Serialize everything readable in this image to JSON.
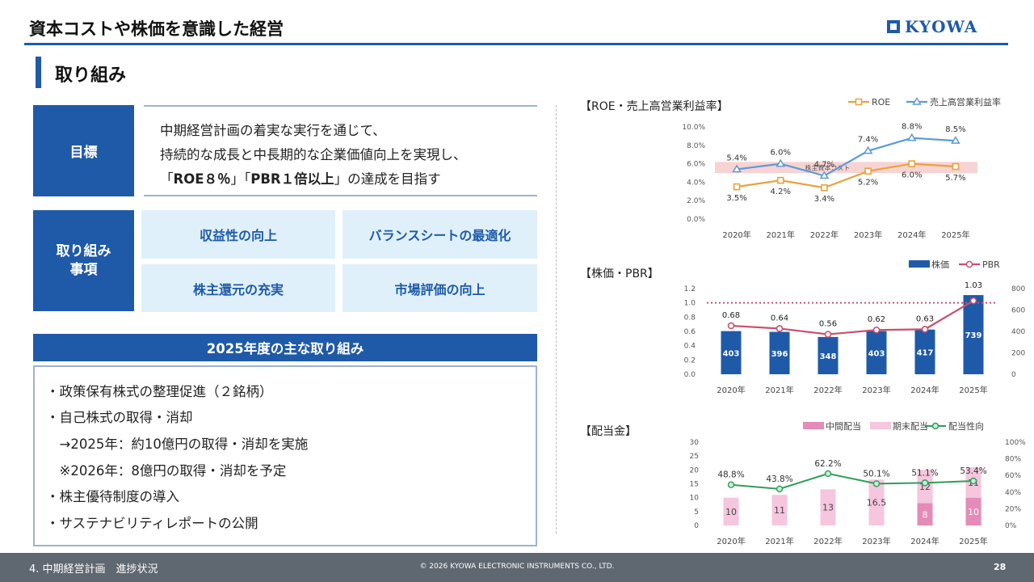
{
  "header": {
    "title": "資本コストや株価を意識した経営",
    "logo_text": "KYOWA"
  },
  "section": {
    "title": "取り組み"
  },
  "goal": {
    "label": "目標",
    "line1": "中期経営計画の着実な実行を通じて、",
    "line2": "持続的な成長と中長期的な企業価値向上を実現し、",
    "line3_pre": "「",
    "line3_roe": "ROE８％",
    "line3_mid": "」「",
    "line3_pbr": "PBR１倍以上",
    "line3_post": "」の達成を目指す"
  },
  "actions": {
    "label_line1": "取り組み",
    "label_line2": "事項",
    "items": [
      "収益性の向上",
      "バランスシートの最適化",
      "株主還元の充実",
      "市場評価の向上"
    ]
  },
  "fy2025": {
    "header": "2025年度の主な取り組み",
    "items": [
      "・政策保有株式の整理促進（２銘柄）",
      "・自己株式の取得・消却",
      "　→2025年：約10億円の取得・消却を実施",
      "　※2026年：8億円の取得・消却を予定",
      "・株主優待制度の導入",
      "・サステナビリティレポートの公開"
    ]
  },
  "footer": {
    "left": "4.  中期経営計画　進捗状況",
    "center": "© 2026 KYOWA ELECTRONIC INSTRUMENTS CO., LTD.",
    "page": "28"
  },
  "colors": {
    "brand": "#1f5aa8",
    "roe": "#e8a33c",
    "margin": "#5b9bd5",
    "pbr": "#c9506e",
    "interim": "#e58bb7",
    "year_end": "#f5c6dd",
    "payout": "#2e9e5a",
    "band": "#f8d3d3"
  },
  "chart_data": [
    {
      "type": "line",
      "title": "【ROE・売上高営業利益率】",
      "categories": [
        "2020年",
        "2021年",
        "2022年",
        "2023年",
        "2024年",
        "2025年"
      ],
      "series": [
        {
          "name": "ROE",
          "values": [
            3.5,
            4.2,
            3.4,
            5.2,
            6.0,
            5.7
          ],
          "labels": [
            "3.5%",
            "4.2%",
            "3.4%",
            "5.2%",
            "6.0%",
            "5.7%"
          ]
        },
        {
          "name": "売上高営業利益率",
          "values": [
            5.4,
            6.0,
            4.7,
            7.4,
            8.8,
            8.5
          ],
          "labels": [
            "5.4%",
            "6.0%",
            "4.7%",
            "7.4%",
            "8.8%",
            "8.5%"
          ]
        }
      ],
      "band": {
        "label": "株主資本コスト",
        "from": 5.0,
        "to": 6.2
      },
      "ylim": [
        0,
        10
      ],
      "yticks": [
        "0.0%",
        "2.0%",
        "4.0%",
        "6.0%",
        "8.0%",
        "10.0%"
      ],
      "legend": "top-right"
    },
    {
      "type": "bar",
      "title": "【株価・PBR】",
      "categories": [
        "2020年",
        "2021年",
        "2022年",
        "2023年",
        "2024年",
        "2025年"
      ],
      "series": [
        {
          "name": "株価",
          "values": [
            403,
            396,
            348,
            403,
            417,
            739
          ]
        },
        {
          "name": "PBR",
          "values": [
            0.68,
            0.64,
            0.56,
            0.62,
            0.63,
            1.03
          ],
          "labels": [
            "0.68",
            "0.64",
            "0.56",
            "0.62",
            "0.63",
            "1.03"
          ]
        }
      ],
      "ylim_left": [
        0,
        1.2
      ],
      "ylim_right": [
        0,
        800
      ],
      "yticks_left": [
        "0.0",
        "0.2",
        "0.4",
        "0.6",
        "0.8",
        "1.0",
        "1.2"
      ],
      "yticks_right": [
        "0",
        "200",
        "400",
        "600",
        "800"
      ],
      "reference_line": 1.0,
      "legend": "top-right"
    },
    {
      "type": "bar",
      "title": "【配当金】",
      "categories": [
        "2020年",
        "2021年",
        "2022年",
        "2023年",
        "2024年",
        "2025年"
      ],
      "series": [
        {
          "name": "中間配当",
          "values": [
            0,
            0,
            0,
            0,
            8,
            10
          ]
        },
        {
          "name": "期末配当",
          "values": [
            10,
            11,
            13,
            16.5,
            12,
            11
          ]
        },
        {
          "name": "配当性向",
          "values": [
            48.8,
            43.8,
            62.2,
            50.1,
            51.1,
            53.4
          ],
          "labels": [
            "48.8%",
            "43.8%",
            "62.2%",
            "50.1%",
            "51.1%",
            "53.4%"
          ]
        }
      ],
      "bar_labels": [
        [
          "",
          "10"
        ],
        [
          "",
          "11"
        ],
        [
          "",
          "13"
        ],
        [
          "",
          "16.5"
        ],
        [
          "8",
          "12"
        ],
        [
          "10",
          "11"
        ]
      ],
      "ylim_left": [
        0,
        30
      ],
      "ylim_right": [
        0,
        100
      ],
      "yticks_left": [
        "0",
        "5",
        "10",
        "15",
        "20",
        "25",
        "30"
      ],
      "yticks_right": [
        "0%",
        "20%",
        "40%",
        "60%",
        "80%",
        "100%"
      ],
      "legend": "top-right"
    }
  ]
}
